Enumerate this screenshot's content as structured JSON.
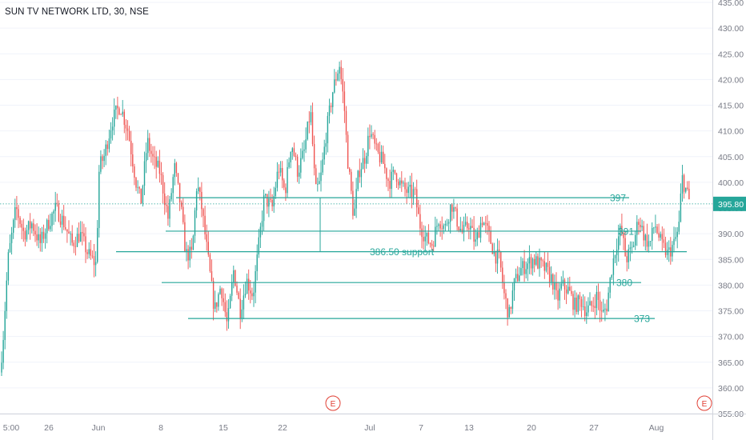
{
  "chart_title": "SUN TV NETWORK LTD, 30, NSE",
  "colors": {
    "up": "#26a69a",
    "down": "#ef5350",
    "line": "#26a69a",
    "axis_text": "#787b86",
    "price_label_bg": "#26a69a",
    "event_circle": "#e03c31",
    "dotted": "#26a69a"
  },
  "chart_data": {
    "type": "candlestick",
    "title": "SUN TV NETWORK LTD, 30, NSE",
    "ylim": [
      355,
      435
    ],
    "y_ticks": [
      "435.00",
      "430.00",
      "425.00",
      "420.00",
      "415.00",
      "410.00",
      "405.00",
      "400.00",
      "395.00",
      "390.00",
      "385.00",
      "380.00",
      "375.00",
      "370.00",
      "365.00",
      "360.00",
      "355.00"
    ],
    "x_ticks": [
      "5:00",
      "26",
      "Jun",
      "8",
      "15",
      "22",
      "Jul",
      "7",
      "13",
      "20",
      "27",
      "Aug"
    ],
    "last_price": "395.80",
    "horizontal_levels": [
      {
        "label": "397",
        "price": 397
      },
      {
        "label": "391",
        "price": 390.5
      },
      {
        "label": "386.50 support",
        "price": 386.5
      },
      {
        "label": "380",
        "price": 380.5
      },
      {
        "label": "373",
        "price": 373.5
      }
    ],
    "events": [
      "E",
      "E"
    ],
    "price_path": [
      [
        0,
        363
      ],
      [
        4,
        370
      ],
      [
        10,
        385
      ],
      [
        20,
        395
      ],
      [
        30,
        390
      ],
      [
        40,
        392
      ],
      [
        50,
        388
      ],
      [
        60,
        392
      ],
      [
        70,
        395
      ],
      [
        80,
        392
      ],
      [
        90,
        388
      ],
      [
        100,
        390
      ],
      [
        110,
        386
      ],
      [
        120,
        384
      ],
      [
        124,
        403
      ],
      [
        130,
        405
      ],
      [
        140,
        412
      ],
      [
        150,
        415
      ],
      [
        160,
        410
      ],
      [
        170,
        400
      ],
      [
        176,
        396
      ],
      [
        184,
        408
      ],
      [
        192,
        404
      ],
      [
        200,
        402
      ],
      [
        210,
        393
      ],
      [
        218,
        403
      ],
      [
        226,
        395
      ],
      [
        232,
        386
      ],
      [
        240,
        386
      ],
      [
        246,
        400
      ],
      [
        252,
        395
      ],
      [
        260,
        385
      ],
      [
        268,
        375
      ],
      [
        276,
        380
      ],
      [
        284,
        372
      ],
      [
        292,
        383
      ],
      [
        300,
        375
      ],
      [
        308,
        381
      ],
      [
        316,
        378
      ],
      [
        322,
        386
      ],
      [
        330,
        397
      ],
      [
        340,
        395
      ],
      [
        348,
        403
      ],
      [
        356,
        398
      ],
      [
        364,
        408
      ],
      [
        372,
        402
      ],
      [
        380,
        406
      ],
      [
        388,
        414
      ],
      [
        394,
        398
      ],
      [
        400,
        400
      ],
      [
        408,
        410
      ],
      [
        416,
        418
      ],
      [
        424,
        423
      ],
      [
        430,
        415
      ],
      [
        434,
        405
      ],
      [
        442,
        393
      ],
      [
        448,
        402
      ],
      [
        456,
        405
      ],
      [
        462,
        410
      ],
      [
        470,
        406
      ],
      [
        478,
        404
      ],
      [
        486,
        400
      ],
      [
        494,
        402
      ],
      [
        502,
        399
      ],
      [
        510,
        398
      ],
      [
        518,
        398
      ],
      [
        524,
        392
      ],
      [
        532,
        389
      ],
      [
        540,
        388
      ],
      [
        548,
        393
      ],
      [
        556,
        391
      ],
      [
        564,
        396
      ],
      [
        572,
        392
      ],
      [
        578,
        390
      ],
      [
        586,
        392
      ],
      [
        594,
        388
      ],
      [
        602,
        393
      ],
      [
        610,
        390
      ],
      [
        618,
        386
      ],
      [
        624,
        385
      ],
      [
        630,
        378
      ],
      [
        636,
        374
      ],
      [
        642,
        380
      ],
      [
        650,
        383
      ],
      [
        658,
        384
      ],
      [
        666,
        385
      ],
      [
        674,
        384
      ],
      [
        682,
        383
      ],
      [
        690,
        381
      ],
      [
        696,
        377
      ],
      [
        702,
        380
      ],
      [
        710,
        379
      ],
      [
        718,
        376
      ],
      [
        726,
        377
      ],
      [
        732,
        375
      ],
      [
        740,
        376
      ],
      [
        746,
        378
      ],
      [
        752,
        374
      ],
      [
        758,
        376
      ],
      [
        764,
        383
      ],
      [
        770,
        388
      ],
      [
        776,
        391
      ],
      [
        782,
        385
      ],
      [
        790,
        387
      ],
      [
        798,
        393
      ],
      [
        806,
        389
      ],
      [
        812,
        388
      ],
      [
        818,
        392
      ],
      [
        826,
        388
      ],
      [
        834,
        386
      ],
      [
        842,
        388
      ],
      [
        848,
        391
      ],
      [
        852,
        401
      ],
      [
        858,
        398
      ],
      [
        862,
        395.8
      ]
    ]
  }
}
